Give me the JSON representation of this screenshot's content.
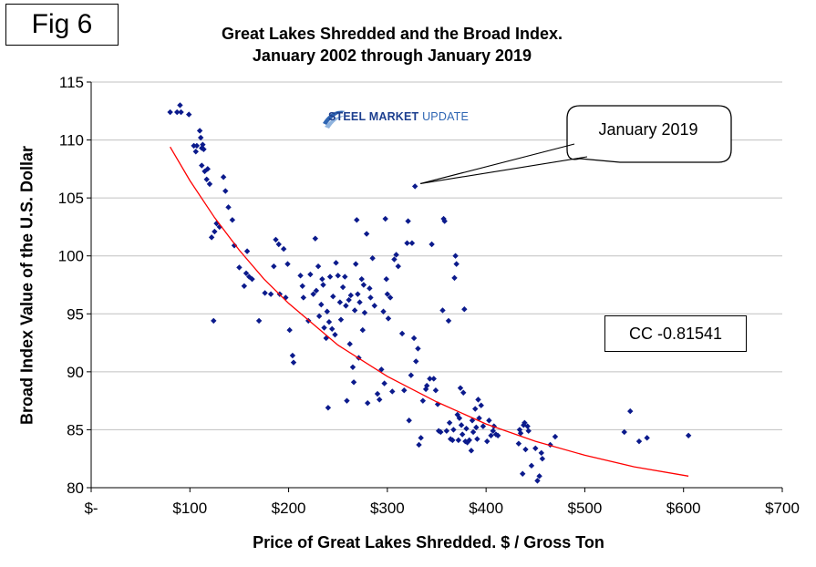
{
  "figure": {
    "label": "Fig 6",
    "title_line1": "Great Lakes Shredded and the Broad Index.",
    "title_line2": "January 2002 through January 2019",
    "logo_bold": "STEEL MARKET",
    "logo_light": " UPDATE",
    "callout": "January 2019",
    "cc_box": "CC -0.81541"
  },
  "colors": {
    "points": "#0b1a8c",
    "trendline": "#ff0000",
    "grid": "#c0c0c0",
    "logo_accent": "#1d3f8f"
  },
  "chart_data": {
    "type": "scatter",
    "title": "Great Lakes Shredded and the Broad Index. January 2002 through January 2019",
    "xlabel": "Price of Great Lakes Shredded. $ / Gross Ton",
    "ylabel": "Broad Index Value of the U.S. Dollar",
    "xlim": [
      0,
      700
    ],
    "ylim": [
      80,
      115
    ],
    "x_ticks": [
      0,
      100,
      200,
      300,
      400,
      500,
      600,
      700
    ],
    "x_tick_labels": [
      "$-",
      "$100",
      "$200",
      "$300",
      "$400",
      "$500",
      "$600",
      "$700"
    ],
    "y_ticks": [
      80,
      85,
      90,
      95,
      100,
      105,
      110,
      115
    ],
    "y_tick_labels": [
      "80",
      "85",
      "90",
      "95",
      "100",
      "105",
      "110",
      "115"
    ],
    "grid": "horizontal",
    "legend": "none",
    "annotations": [
      {
        "text": "January 2019",
        "x": 328,
        "y": 106
      },
      {
        "text": "CC -0.81541"
      }
    ],
    "trendline": {
      "x": [
        80,
        100,
        125,
        150,
        175,
        200,
        250,
        300,
        350,
        400,
        450,
        500,
        550,
        605
      ],
      "y": [
        109.4,
        106.5,
        103.3,
        100.5,
        98.0,
        95.9,
        92.3,
        89.6,
        87.4,
        85.5,
        84.0,
        82.8,
        81.8,
        81.0
      ]
    },
    "series": [
      {
        "points": [
          [
            80,
            112.4
          ],
          [
            87,
            112.4
          ],
          [
            90,
            113.0
          ],
          [
            91,
            112.4
          ],
          [
            99,
            112.2
          ],
          [
            104,
            109.5
          ],
          [
            106,
            109.0
          ],
          [
            107,
            109.5
          ],
          [
            110,
            110.8
          ],
          [
            111,
            110.2
          ],
          [
            112,
            109.3
          ],
          [
            113,
            109.6
          ],
          [
            114,
            109.2
          ],
          [
            112,
            107.8
          ],
          [
            115,
            107.3
          ],
          [
            118,
            107.5
          ],
          [
            117,
            106.6
          ],
          [
            120,
            106.2
          ],
          [
            125,
            102.1
          ],
          [
            127,
            102.8
          ],
          [
            130,
            102.5
          ],
          [
            122,
            101.6
          ],
          [
            134,
            106.8
          ],
          [
            136,
            105.6
          ],
          [
            139,
            104.2
          ],
          [
            143,
            103.1
          ],
          [
            145,
            100.9
          ],
          [
            124,
            94.4
          ],
          [
            157,
            98.5
          ],
          [
            158,
            100.4
          ],
          [
            160,
            98.2
          ],
          [
            163,
            98.0
          ],
          [
            155,
            97.4
          ],
          [
            150,
            99.0
          ],
          [
            170,
            94.4
          ],
          [
            176,
            96.8
          ],
          [
            182,
            96.7
          ],
          [
            185,
            99.1
          ],
          [
            187,
            101.4
          ],
          [
            190,
            101.0
          ],
          [
            191,
            96.7
          ],
          [
            195,
            100.6
          ],
          [
            197,
            96.4
          ],
          [
            199,
            99.3
          ],
          [
            201,
            93.6
          ],
          [
            204,
            91.4
          ],
          [
            205,
            90.8
          ],
          [
            212,
            98.3
          ],
          [
            214,
            97.4
          ],
          [
            215,
            96.4
          ],
          [
            220,
            94.4
          ],
          [
            222,
            98.4
          ],
          [
            225,
            96.7
          ],
          [
            227,
            101.5
          ],
          [
            228,
            97.0
          ],
          [
            230,
            99.1
          ],
          [
            231,
            94.8
          ],
          [
            233,
            95.8
          ],
          [
            234,
            98.0
          ],
          [
            235,
            97.5
          ],
          [
            236,
            93.8
          ],
          [
            238,
            92.9
          ],
          [
            239,
            95.2
          ],
          [
            240,
            86.9
          ],
          [
            241,
            94.3
          ],
          [
            242,
            98.2
          ],
          [
            244,
            93.7
          ],
          [
            245,
            96.5
          ],
          [
            247,
            93.2
          ],
          [
            248,
            99.4
          ],
          [
            250,
            98.3
          ],
          [
            252,
            96.0
          ],
          [
            253,
            94.5
          ],
          [
            255,
            97.3
          ],
          [
            257,
            98.2
          ],
          [
            258,
            95.7
          ],
          [
            259,
            87.5
          ],
          [
            261,
            96.2
          ],
          [
            262,
            92.4
          ],
          [
            263,
            96.6
          ],
          [
            265,
            90.4
          ],
          [
            266,
            89.1
          ],
          [
            267,
            95.3
          ],
          [
            268,
            99.3
          ],
          [
            269,
            103.1
          ],
          [
            270,
            96.7
          ],
          [
            271,
            91.2
          ],
          [
            272,
            96.0
          ],
          [
            274,
            98.0
          ],
          [
            275,
            93.6
          ],
          [
            276,
            97.5
          ],
          [
            277,
            95.1
          ],
          [
            279,
            101.9
          ],
          [
            280,
            87.3
          ],
          [
            282,
            97.2
          ],
          [
            283,
            96.4
          ],
          [
            285,
            99.8
          ],
          [
            287,
            95.7
          ],
          [
            290,
            88.1
          ],
          [
            292,
            87.6
          ],
          [
            294,
            90.2
          ],
          [
            296,
            95.2
          ],
          [
            297,
            89.0
          ],
          [
            298,
            103.2
          ],
          [
            299,
            98.0
          ],
          [
            300,
            96.7
          ],
          [
            301,
            94.6
          ],
          [
            303,
            96.4
          ],
          [
            305,
            88.3
          ],
          [
            307,
            99.7
          ],
          [
            309,
            100.1
          ],
          [
            311,
            99.1
          ],
          [
            315,
            93.3
          ],
          [
            317,
            88.4
          ],
          [
            320,
            101.1
          ],
          [
            321,
            103.0
          ],
          [
            322,
            85.8
          ],
          [
            324,
            89.7
          ],
          [
            325,
            101.1
          ],
          [
            327,
            92.9
          ],
          [
            328,
            106.0
          ],
          [
            329,
            90.9
          ],
          [
            331,
            92.0
          ],
          [
            332,
            83.7
          ],
          [
            334,
            84.3
          ],
          [
            336,
            87.5
          ],
          [
            339,
            88.5
          ],
          [
            340,
            88.8
          ],
          [
            343,
            89.4
          ],
          [
            345,
            101.0
          ],
          [
            347,
            89.4
          ],
          [
            349,
            88.4
          ],
          [
            351,
            87.2
          ],
          [
            352,
            84.9
          ],
          [
            354,
            84.8
          ],
          [
            356,
            95.3
          ],
          [
            357,
            103.2
          ],
          [
            358,
            103.0
          ],
          [
            360,
            84.9
          ],
          [
            362,
            94.4
          ],
          [
            363,
            85.6
          ],
          [
            364,
            84.2
          ],
          [
            366,
            84.1
          ],
          [
            367,
            85.0
          ],
          [
            368,
            98.1
          ],
          [
            369,
            100.0
          ],
          [
            370,
            99.3
          ],
          [
            371,
            86.3
          ],
          [
            372,
            84.1
          ],
          [
            373,
            86.0
          ],
          [
            374,
            88.6
          ],
          [
            375,
            85.4
          ],
          [
            376,
            84.6
          ],
          [
            377,
            88.2
          ],
          [
            378,
            95.4
          ],
          [
            379,
            84.0
          ],
          [
            380,
            85.1
          ],
          [
            381,
            83.9
          ],
          [
            383,
            84.1
          ],
          [
            385,
            83.2
          ],
          [
            386,
            85.8
          ],
          [
            387,
            84.8
          ],
          [
            389,
            86.8
          ],
          [
            390,
            85.2
          ],
          [
            391,
            84.2
          ],
          [
            392,
            87.6
          ],
          [
            393,
            86.0
          ],
          [
            395,
            87.1
          ],
          [
            397,
            85.3
          ],
          [
            401,
            84.0
          ],
          [
            403,
            85.8
          ],
          [
            405,
            84.5
          ],
          [
            407,
            84.9
          ],
          [
            408,
            85.3
          ],
          [
            410,
            84.6
          ],
          [
            412,
            84.5
          ],
          [
            433,
            83.8
          ],
          [
            434,
            85.0
          ],
          [
            435,
            84.7
          ],
          [
            437,
            81.2
          ],
          [
            438,
            85.4
          ],
          [
            439,
            85.6
          ],
          [
            440,
            83.3
          ],
          [
            442,
            85.3
          ],
          [
            443,
            84.9
          ],
          [
            446,
            81.9
          ],
          [
            450,
            83.4
          ],
          [
            452,
            80.6
          ],
          [
            454,
            81.0
          ],
          [
            456,
            83.0
          ],
          [
            457,
            82.5
          ],
          [
            465,
            83.7
          ],
          [
            470,
            84.4
          ],
          [
            540,
            84.8
          ],
          [
            546,
            86.6
          ],
          [
            555,
            84.0
          ],
          [
            563,
            84.3
          ],
          [
            605,
            84.5
          ]
        ]
      }
    ]
  }
}
